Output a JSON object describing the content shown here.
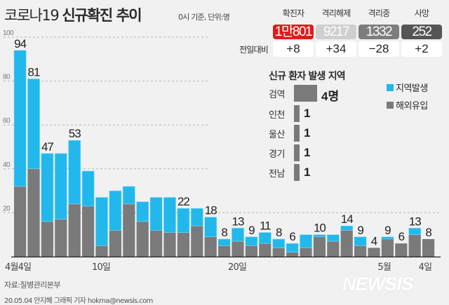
{
  "header": {
    "title_light": "코로나19",
    "title_bold": "신규확진 추이",
    "subtitle": "0시 기준, 단위:명"
  },
  "stats": {
    "diff_label": "전일대비",
    "items": [
      {
        "label": "확진자",
        "value": "1만801",
        "diff": "+8",
        "color": "#e01b1b"
      },
      {
        "label": "격리해제",
        "value": "9217",
        "diff": "+34",
        "color": "#cfcfcf"
      },
      {
        "label": "격리중",
        "value": "1332",
        "diff": "−28",
        "color": "#7d7d7d"
      },
      {
        "label": "사망",
        "value": "252",
        "diff": "+2",
        "color": "#555555"
      }
    ]
  },
  "regions": {
    "title": "신규 환자 발생 지역",
    "items": [
      {
        "label": "검역",
        "value": 4,
        "value_label": "4명"
      },
      {
        "label": "인천",
        "value": 1,
        "value_label": "1"
      },
      {
        "label": "울산",
        "value": 1,
        "value_label": "1"
      },
      {
        "label": "경기",
        "value": 1,
        "value_label": "1"
      },
      {
        "label": "전남",
        "value": 1,
        "value_label": "1"
      }
    ]
  },
  "chart_data": {
    "type": "bar",
    "stacked": true,
    "x": [
      "4/4",
      "4/5",
      "4/6",
      "4/7",
      "4/8",
      "4/9",
      "4/10",
      "4/11",
      "4/12",
      "4/13",
      "4/14",
      "4/15",
      "4/16",
      "4/17",
      "4/18",
      "4/19",
      "4/20",
      "4/21",
      "4/22",
      "4/23",
      "4/24",
      "4/25",
      "4/26",
      "4/27",
      "4/28",
      "4/29",
      "4/30",
      "5/1",
      "5/2",
      "5/3",
      "5/4"
    ],
    "x_tick_labels": [
      {
        "index": 0,
        "label": "4월4일"
      },
      {
        "index": 6,
        "label": "10일"
      },
      {
        "index": 16,
        "label": "20일"
      },
      {
        "index": 27,
        "label": "5월"
      },
      {
        "index": 30,
        "label": "4일"
      }
    ],
    "totals": [
      94,
      81,
      47,
      47,
      53,
      39,
      27,
      30,
      32,
      25,
      27,
      27,
      22,
      22,
      18,
      8,
      13,
      9,
      11,
      8,
      6,
      10,
      10,
      10,
      14,
      9,
      4,
      9,
      6,
      13,
      8
    ],
    "data_labels_shown_at": [
      0,
      1,
      2,
      4,
      12,
      14,
      15,
      16,
      17,
      18,
      19,
      20,
      22,
      24,
      25,
      26,
      27,
      28,
      29,
      30
    ],
    "series": [
      {
        "name": "해외유입",
        "color": "#7a7a7a",
        "values": [
          32,
          40,
          16,
          17,
          24,
          23,
          5,
          12,
          24,
          16,
          12,
          11,
          11,
          14,
          9,
          5,
          7,
          5,
          6,
          4,
          2,
          4,
          9,
          7,
          12,
          5,
          4,
          8,
          6,
          10,
          8
        ]
      },
      {
        "name": "지역발생",
        "color": "#22b8ec",
        "values": [
          62,
          41,
          31,
          30,
          29,
          16,
          22,
          18,
          8,
          9,
          15,
          16,
          11,
          8,
          9,
          3,
          6,
          4,
          5,
          4,
          4,
          6,
          1,
          3,
          2,
          4,
          0,
          1,
          0,
          3,
          0
        ]
      }
    ],
    "ylim": [
      0,
      100
    ],
    "yticks": [
      20,
      40,
      60,
      80,
      100
    ],
    "grid": true,
    "legend": "right"
  },
  "footer": {
    "source": "자료:질병관리본부",
    "credit": "20.05.04 안지혜 그래픽 기자 hokma@newsis.com",
    "logo": "NEWSIS"
  }
}
